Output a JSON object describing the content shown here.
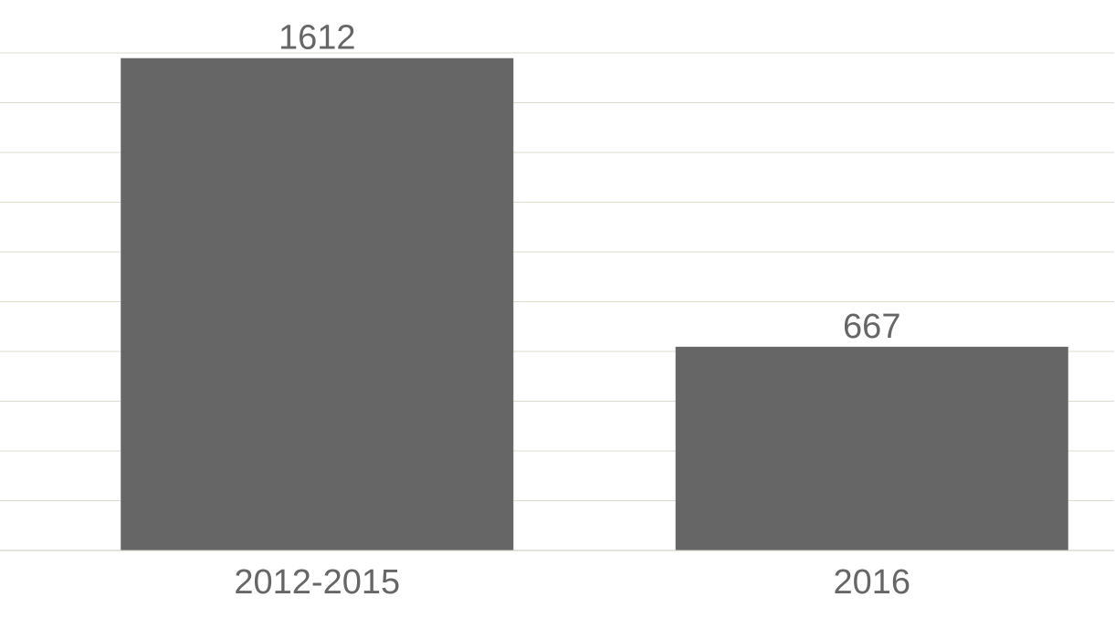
{
  "chart_data": {
    "type": "bar",
    "categories": [
      "2012-2015",
      "2016"
    ],
    "values": [
      1612,
      667
    ],
    "ylim": [
      0,
      1650
    ],
    "grid": true,
    "legend": "none",
    "colors": {
      "bar": "#666666",
      "grid": "#dcdccc",
      "text": "#666666"
    }
  }
}
